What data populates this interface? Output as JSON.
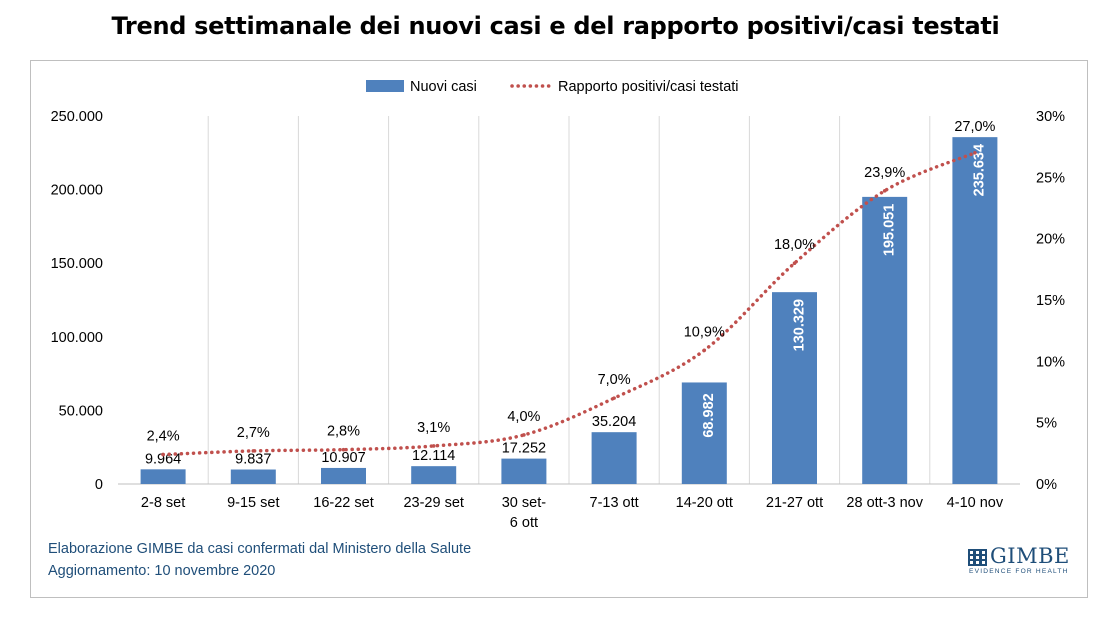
{
  "title": "Trend settimanale dei nuovi casi e del rapporto positivi/casi testati",
  "source": {
    "line1": "Elaborazione GIMBE da casi confermati dal Ministero della Salute",
    "line2": "Aggiornamento: 10 novembre 2020"
  },
  "logo": {
    "word": "GIMBE",
    "tagline": "EVIDENCE FOR HEALTH"
  },
  "colors": {
    "bar": "#4f81bd",
    "line": "#c0504d",
    "grid": "#d9d9d9",
    "source_text": "#1f4e79"
  },
  "chart_data": {
    "type": "bar",
    "categories": [
      [
        "2-8 set"
      ],
      [
        "9-15 set"
      ],
      [
        "16-22 set"
      ],
      [
        "23-29 set"
      ],
      [
        "30 set-",
        "6 ott"
      ],
      [
        "7-13 ott"
      ],
      [
        "14-20 ott"
      ],
      [
        "21-27 ott"
      ],
      [
        "28 ott-3 nov"
      ],
      [
        "4-10 nov"
      ]
    ],
    "series": [
      {
        "name": "Nuovi casi",
        "type": "bar",
        "axis": "left",
        "values": [
          9964,
          9837,
          10907,
          12114,
          17252,
          35204,
          68982,
          130329,
          195051,
          235634
        ],
        "labels": [
          "9.964",
          "9.837",
          "10.907",
          "12.114",
          "17.252",
          "35.204",
          "68.982",
          "130.329",
          "195.051",
          "235.634"
        ]
      },
      {
        "name": "Rapporto positivi/casi testati",
        "type": "line",
        "style": "dotted",
        "axis": "right",
        "values": [
          2.4,
          2.7,
          2.8,
          3.1,
          4.0,
          7.0,
          10.9,
          18.0,
          23.9,
          27.0
        ],
        "labels": [
          "2,4%",
          "2,7%",
          "2,8%",
          "3,1%",
          "4,0%",
          "7,0%",
          "10,9%",
          "18,0%",
          "23,9%",
          "27,0%"
        ]
      }
    ],
    "ylim": [
      0,
      250000
    ],
    "y_ticks": [
      "0",
      "50.000",
      "100.000",
      "150.000",
      "200.000",
      "250.000"
    ],
    "y2lim": [
      0,
      30
    ],
    "y2_ticks": [
      "0%",
      "5%",
      "10%",
      "15%",
      "20%",
      "25%",
      "30%"
    ],
    "grid": "vertical",
    "legend": "top-center"
  }
}
